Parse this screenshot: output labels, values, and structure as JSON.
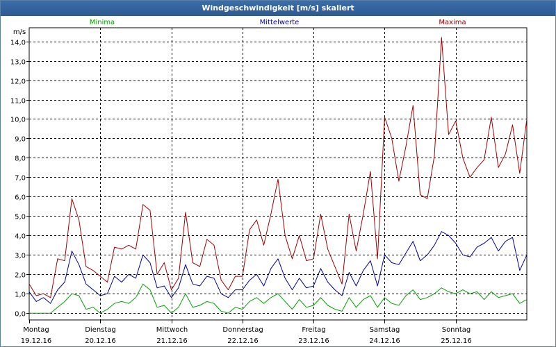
{
  "window": {
    "title": "Windgeschwindigkeit [m/s] skaliert"
  },
  "chart_data": {
    "type": "line",
    "title": "Windgeschwindigkeit [m/s] skaliert",
    "ylabel": "m/s",
    "xlabel": "",
    "ylim": [
      -0.35,
      14.7
    ],
    "yticks": [
      "0,0",
      "1,0",
      "2,0",
      "3,0",
      "4,0",
      "5,0",
      "6,0",
      "7,0",
      "8,0",
      "9,0",
      "10,0",
      "11,0",
      "12,0",
      "13,0",
      "14,0"
    ],
    "ytick_values": [
      0,
      1,
      2,
      3,
      4,
      5,
      6,
      7,
      8,
      9,
      10,
      11,
      12,
      13,
      14
    ],
    "x_range_days": [
      0,
      7
    ],
    "x_day_starts": [
      0,
      1,
      2,
      3,
      4,
      5,
      6
    ],
    "x_ticks": [
      {
        "day": "Montag",
        "date": "19.12.16"
      },
      {
        "day": "Dienstag",
        "date": "20.12.16"
      },
      {
        "day": "Mittwoch",
        "date": "21.12.16"
      },
      {
        "day": "Donnerstag",
        "date": "22.12.16"
      },
      {
        "day": "Freitag",
        "date": "23.12.16"
      },
      {
        "day": "Samstag",
        "date": "24.12.16"
      },
      {
        "day": "Sonntag",
        "date": "25.12.16"
      }
    ],
    "grid": true,
    "legend_position": "top",
    "series": [
      {
        "name": "Maxima",
        "color": "#a00000",
        "x": [
          0,
          0.1,
          0.2,
          0.3,
          0.4,
          0.5,
          0.6,
          0.7,
          0.8,
          0.9,
          1,
          1.1,
          1.2,
          1.3,
          1.4,
          1.5,
          1.6,
          1.7,
          1.8,
          1.9,
          2,
          2.1,
          2.2,
          2.3,
          2.4,
          2.5,
          2.6,
          2.7,
          2.8,
          2.9,
          3,
          3.1,
          3.2,
          3.3,
          3.4,
          3.5,
          3.6,
          3.7,
          3.8,
          3.9,
          4,
          4.1,
          4.2,
          4.3,
          4.4,
          4.5,
          4.6,
          4.7,
          4.8,
          4.9,
          5,
          5.1,
          5.2,
          5.3,
          5.4,
          5.5,
          5.6,
          5.7,
          5.8,
          5.9,
          6,
          6.1,
          6.2,
          6.3,
          6.4,
          6.5,
          6.6,
          6.7,
          6.8,
          6.9,
          7
        ],
        "y": [
          1.5,
          0.9,
          1.0,
          0.8,
          2.8,
          2.7,
          5.9,
          4.8,
          2.4,
          2.2,
          1.9,
          1.6,
          3.4,
          3.3,
          3.5,
          3.3,
          5.6,
          5.3,
          2.0,
          2.6,
          1.2,
          1.8,
          5.2,
          2.6,
          2.4,
          3.8,
          3.5,
          1.7,
          1.2,
          1.9,
          1.9,
          4.3,
          4.8,
          3.5,
          5.1,
          6.9,
          4.0,
          2.8,
          4.0,
          2.7,
          2.8,
          5.1,
          3.3,
          2.4,
          1.5,
          5.1,
          3.2,
          5.1,
          7.3,
          2.8,
          10.1,
          9.0,
          6.8,
          8.6,
          10.7,
          6.1,
          5.9,
          8.1,
          14.2,
          9.2,
          9.9,
          8.0,
          7.0,
          7.5,
          7.9,
          10.1,
          7.5,
          8.2,
          9.7,
          7.2,
          10.0
        ]
      },
      {
        "name": "Mittelwerte",
        "color": "#0000a0",
        "x": [
          0,
          0.1,
          0.2,
          0.3,
          0.4,
          0.5,
          0.6,
          0.7,
          0.8,
          0.9,
          1,
          1.1,
          1.2,
          1.3,
          1.4,
          1.5,
          1.6,
          1.7,
          1.8,
          1.9,
          2,
          2.1,
          2.2,
          2.3,
          2.4,
          2.5,
          2.6,
          2.7,
          2.8,
          2.9,
          3,
          3.1,
          3.2,
          3.3,
          3.4,
          3.5,
          3.6,
          3.7,
          3.8,
          3.9,
          4,
          4.1,
          4.2,
          4.3,
          4.4,
          4.5,
          4.6,
          4.7,
          4.8,
          4.9,
          5,
          5.1,
          5.2,
          5.3,
          5.4,
          5.5,
          5.6,
          5.7,
          5.8,
          5.9,
          6,
          6.1,
          6.2,
          6.3,
          6.4,
          6.5,
          6.6,
          6.7,
          6.8,
          6.9,
          7
        ],
        "y": [
          1.1,
          0.6,
          0.8,
          0.5,
          1.2,
          1.6,
          3.2,
          2.5,
          1.5,
          1.2,
          0.9,
          1.0,
          1.9,
          1.6,
          2.0,
          1.8,
          3.0,
          2.6,
          1.3,
          1.4,
          0.8,
          1.3,
          2.5,
          1.5,
          1.4,
          1.9,
          1.8,
          1.0,
          0.8,
          1.2,
          1.2,
          1.7,
          2.0,
          1.4,
          2.3,
          2.8,
          1.8,
          1.2,
          1.8,
          1.3,
          1.4,
          2.3,
          1.6,
          1.2,
          0.9,
          2.1,
          1.4,
          2.2,
          2.7,
          1.4,
          3.0,
          2.6,
          2.5,
          3.1,
          3.7,
          2.7,
          3.0,
          3.5,
          4.2,
          4.0,
          3.6,
          3.0,
          2.9,
          3.4,
          3.6,
          3.9,
          3.2,
          3.7,
          3.9,
          2.2,
          3.0
        ]
      },
      {
        "name": "Minima",
        "color": "#00a000",
        "x": [
          0,
          0.1,
          0.2,
          0.3,
          0.4,
          0.5,
          0.6,
          0.7,
          0.8,
          0.9,
          1,
          1.1,
          1.2,
          1.3,
          1.4,
          1.5,
          1.6,
          1.7,
          1.8,
          1.9,
          2,
          2.1,
          2.2,
          2.3,
          2.4,
          2.5,
          2.6,
          2.7,
          2.8,
          2.9,
          3,
          3.1,
          3.2,
          3.3,
          3.4,
          3.5,
          3.6,
          3.7,
          3.8,
          3.9,
          4,
          4.1,
          4.2,
          4.3,
          4.4,
          4.5,
          4.6,
          4.7,
          4.8,
          4.9,
          5,
          5.1,
          5.2,
          5.3,
          5.4,
          5.5,
          5.6,
          5.7,
          5.8,
          5.9,
          6,
          6.1,
          6.2,
          6.3,
          6.4,
          6.5,
          6.6,
          6.7,
          6.8,
          6.9,
          7
        ],
        "y": [
          0.0,
          0.0,
          0.0,
          0.0,
          0.3,
          0.6,
          1.0,
          0.9,
          0.2,
          0.3,
          0.0,
          0.2,
          0.5,
          0.6,
          0.5,
          0.8,
          1.5,
          1.2,
          0.3,
          0.4,
          0.0,
          0.3,
          1.0,
          0.3,
          0.4,
          0.6,
          0.5,
          0.1,
          0.0,
          0.3,
          0.2,
          0.6,
          0.8,
          0.5,
          0.8,
          1.0,
          0.6,
          0.2,
          0.7,
          0.3,
          0.4,
          0.8,
          0.4,
          0.2,
          0.1,
          0.8,
          0.3,
          0.7,
          0.9,
          0.3,
          0.8,
          0.5,
          0.4,
          0.9,
          1.2,
          0.7,
          0.8,
          1.0,
          1.3,
          1.1,
          1.0,
          1.2,
          1.0,
          1.1,
          0.7,
          1.1,
          0.8,
          0.9,
          1.0,
          0.5,
          0.7
        ]
      }
    ]
  }
}
